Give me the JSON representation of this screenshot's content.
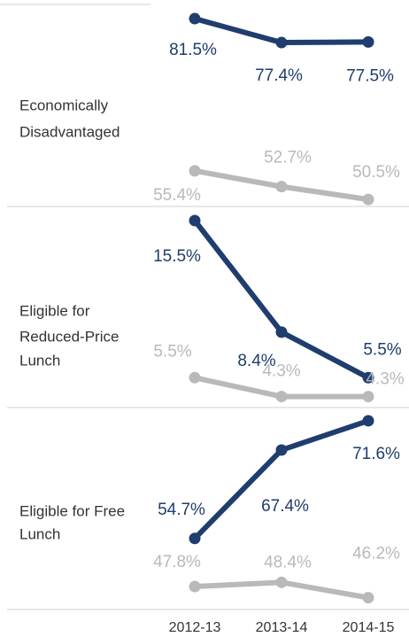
{
  "chart_data": [
    {
      "type": "line",
      "title": [
        "Economically",
        "Disadvantaged"
      ],
      "ylim": [
        49.3,
        84.7
      ],
      "series": [
        {
          "color": "#1f3d6e",
          "values": [
            81.5,
            77.4,
            77.5
          ],
          "value_labels": [
            "81.5%",
            "77.4%",
            "77.5%"
          ]
        },
        {
          "color": "#b9b9b9",
          "values": [
            55.4,
            52.7,
            50.5
          ],
          "value_labels": [
            "55.4%",
            "52.7%",
            "50.5%"
          ]
        }
      ]
    },
    {
      "type": "line",
      "title": [
        "Eligible for",
        "Reduced-Price",
        "Lunch"
      ],
      "ylim": [
        3.6,
        16.4
      ],
      "series": [
        {
          "color": "#1f3d6e",
          "values": [
            15.5,
            8.4,
            5.5
          ],
          "value_labels": [
            "15.5%",
            "8.4%",
            "5.5%"
          ]
        },
        {
          "color": "#b9b9b9",
          "values": [
            5.5,
            4.3,
            4.3
          ],
          "value_labels": [
            "5.5%",
            "4.3%",
            "4.3%"
          ]
        }
      ]
    },
    {
      "type": "line",
      "title": [
        "Eligible for Free",
        "Lunch"
      ],
      "ylim": [
        44.5,
        73.5
      ],
      "categories": [
        "2012-13",
        "2013-14",
        "2014-15"
      ],
      "series": [
        {
          "color": "#1f3d6e",
          "values": [
            54.7,
            67.4,
            71.6
          ],
          "value_labels": [
            "54.7%",
            "67.4%",
            "71.6%"
          ]
        },
        {
          "color": "#b9b9b9",
          "values": [
            47.8,
            48.4,
            46.2
          ],
          "value_labels": [
            "47.8%",
            "48.4%",
            "46.2%"
          ]
        }
      ]
    }
  ]
}
